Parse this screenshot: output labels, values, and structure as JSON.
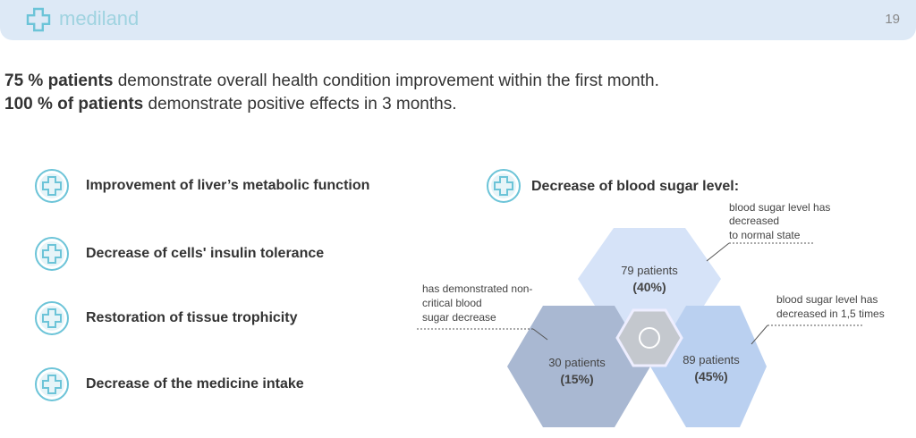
{
  "header": {
    "logo": "mediland",
    "page_number": "19"
  },
  "headline": [
    {
      "bold": "75 % patients",
      "text": " demonstrate overall health condition improvement within the first month."
    },
    {
      "bold": "100 % of patients",
      "text": " demonstrate positive effects in 3 months."
    }
  ],
  "benefits": [
    "Improvement of liver’s metabolic function",
    "Decrease of cells' insulin tolerance",
    "Restoration of tissue trophicity",
    "Decrease of the medicine intake"
  ],
  "diagram": {
    "title": "Decrease of blood sugar level:",
    "groups": [
      {
        "count": "79 patients",
        "share": "(40%)",
        "note": [
          "blood sugar level has",
          "decreased",
          "to normal state"
        ]
      },
      {
        "count": "30 patients",
        "share": "(15%)",
        "note": [
          "has demonstrated non-",
          "critical blood",
          "sugar decrease"
        ]
      },
      {
        "count": "89 patients",
        "share": "(45%)",
        "note": [
          "blood sugar level has",
          "decreased in 1,5 times"
        ]
      }
    ]
  }
}
